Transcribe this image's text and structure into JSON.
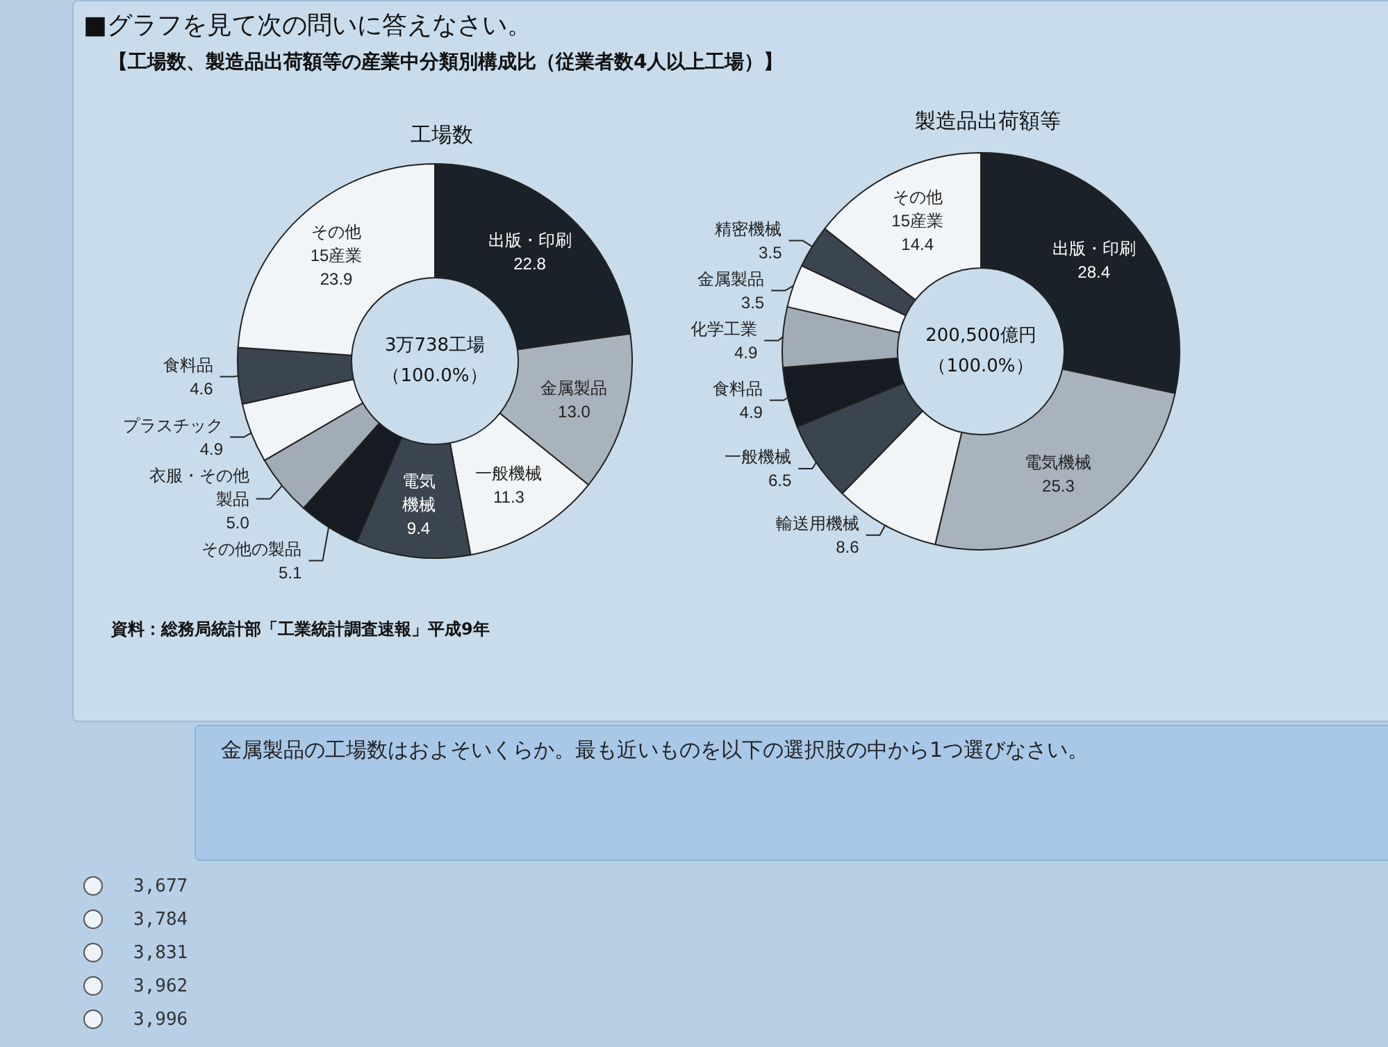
{
  "chart_data": [
    {
      "type": "other",
      "title": "■グラフを見て次の問いに答えなさい。",
      "subtitle": "【工場数、製造品出荷額等の産業中分類別構成比（従業者数4人以上工場）】"
    },
    {
      "type": "donut",
      "title": "工場数",
      "categories": [
        "出版・印刷",
        "金属製品",
        "一般機械",
        "電気機械",
        "その他の製品",
        "衣服・その他製品",
        "プラスチック",
        "食料品",
        "その他\n15産業"
      ],
      "values": [
        22.8,
        13.0,
        11.3,
        9.4,
        5.1,
        5.0,
        4.9,
        4.6,
        23.9
      ],
      "value_labels": [
        "22.8",
        "13.0",
        "11.3",
        "9.4",
        "5.1",
        "5.0",
        "4.9",
        "4.6",
        "23.9"
      ],
      "colors": [
        "#1b2128",
        "#a9b3bd",
        "#f2f5f7",
        "#3b4550",
        "#161b21",
        "#a2acb6",
        "#f2f5f7",
        "#3b4550",
        "#f2f5f7"
      ],
      "annotations": [
        "3万738工場",
        "（100.0%）",
        "資料：総務局統計部「工業統計調査速報」平成9年"
      ]
    },
    {
      "type": "donut",
      "title": "製造品出荷額等",
      "categories": [
        "出版・印刷",
        "電気機械",
        "輸送用機械",
        "一般機械",
        "食料品",
        "化学工業",
        "金属製品",
        "精密機械",
        "その他\n15産業"
      ],
      "values": [
        28.4,
        25.3,
        8.6,
        6.5,
        4.9,
        4.9,
        3.5,
        3.5,
        14.4
      ],
      "value_labels": [
        "28.4",
        "25.3",
        "8.6",
        "6.5",
        "4.9",
        "4.9",
        "3.5",
        "3.5",
        "14.4"
      ],
      "colors": [
        "#1b2128",
        "#a9b3bd",
        "#f2f5f7",
        "#3b4550",
        "#161b21",
        "#a2acb6",
        "#f2f5f7",
        "#3b4550",
        "#f2f5f7"
      ],
      "annotations": [
        "200,500億円",
        "（100.0%）"
      ]
    },
    {
      "type": "other",
      "annotations": [
        "金属製品の工場数はおよそいくらか。最も近いものを以下の選択肢の中から1つ選びなさい。",
        "3,677",
        "3,784",
        "3,831",
        "3,962",
        "3,996"
      ]
    }
  ]
}
